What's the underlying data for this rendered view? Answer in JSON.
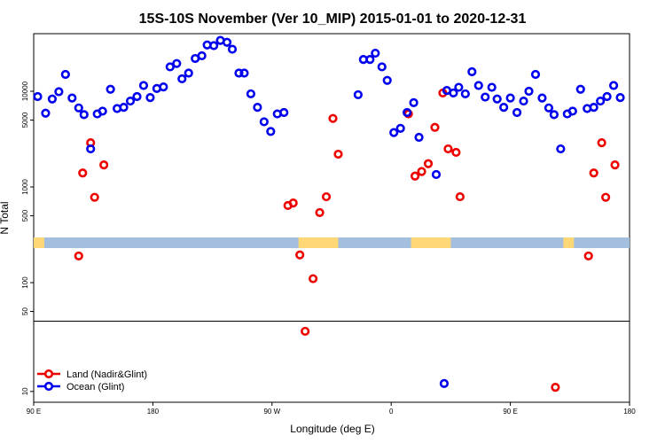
{
  "chart_data": {
    "type": "scatter",
    "title": "15S-10S November (Ver 10_MIP)   2015-01-01 to 2020-12-31",
    "xlabel": "Longitude (deg E)",
    "ylabel": "N Total",
    "x_ticks": [
      {
        "value": 90,
        "label": "90 E"
      },
      {
        "value": 180,
        "label": "180"
      },
      {
        "value": 270,
        "label": "90 W"
      },
      {
        "value": 360,
        "label": "0"
      },
      {
        "value": 450,
        "label": "90 E"
      },
      {
        "value": 540,
        "label": "180"
      }
    ],
    "xlim": [
      90,
      540
    ],
    "upper_panel": {
      "scale": "log",
      "ylim": [
        40,
        40000
      ],
      "y_ticks": [
        {
          "value": 100,
          "label": "100"
        },
        {
          "value": 500,
          "label": "500"
        },
        {
          "value": 1000,
          "label": "1000"
        },
        {
          "value": 5000,
          "label": "5000"
        },
        {
          "value": 10000,
          "label": "10000"
        }
      ]
    },
    "lower_panel": {
      "scale": "log",
      "ylim": [
        7.8,
        50
      ],
      "y_ticks": [
        {
          "value": 10,
          "label": "10"
        },
        {
          "value": 50,
          "label": "50"
        }
      ]
    },
    "legend_position": "bottom-left",
    "surface_strip": {
      "ocean_color": "#a4bedd",
      "land_color": "#fed876",
      "land_ranges": [
        [
          85,
          98
        ],
        [
          290,
          320
        ],
        [
          375,
          405
        ],
        [
          490,
          498
        ]
      ]
    },
    "series": [
      {
        "name": "Land (Nadir&Glint)",
        "color": "#ee0000",
        "points": [
          [
            124,
            190
          ],
          [
            127,
            1400
          ],
          [
            133,
            2900
          ],
          [
            136,
            780
          ],
          [
            143,
            1700
          ],
          [
            282,
            640
          ],
          [
            286,
            680
          ],
          [
            291,
            195
          ],
          [
            295,
            40
          ],
          [
            301,
            110
          ],
          [
            306,
            540
          ],
          [
            311,
            790
          ],
          [
            316,
            5200
          ],
          [
            320,
            2200
          ],
          [
            373,
            5800
          ],
          [
            378,
            1300
          ],
          [
            383,
            1450
          ],
          [
            388,
            1750
          ],
          [
            393,
            4200
          ],
          [
            399,
            9600
          ],
          [
            403,
            2500
          ],
          [
            409,
            2300
          ],
          [
            412,
            790
          ],
          [
            484,
            11
          ],
          [
            509,
            190
          ],
          [
            513,
            1400
          ],
          [
            519,
            2900
          ],
          [
            522,
            780
          ],
          [
            529,
            1700
          ]
        ]
      },
      {
        "name": "Ocean (Glint)",
        "color": "#0000ee",
        "points": [
          [
            93,
            8800
          ],
          [
            99,
            5900
          ],
          [
            104,
            8300
          ],
          [
            109,
            9900
          ],
          [
            114,
            15000
          ],
          [
            119,
            8500
          ],
          [
            124,
            6700
          ],
          [
            128,
            5700
          ],
          [
            133,
            2500
          ],
          [
            138,
            5800
          ],
          [
            142,
            6200
          ],
          [
            148,
            10500
          ],
          [
            153,
            6600
          ],
          [
            158,
            6800
          ],
          [
            163,
            7900
          ],
          [
            168,
            8800
          ],
          [
            173,
            11500
          ],
          [
            178,
            8600
          ],
          [
            183,
            10700
          ],
          [
            188,
            11100
          ],
          [
            193,
            18000
          ],
          [
            198,
            19500
          ],
          [
            202,
            13500
          ],
          [
            207,
            15500
          ],
          [
            212,
            22000
          ],
          [
            217,
            23500
          ],
          [
            221,
            30500
          ],
          [
            226,
            30000
          ],
          [
            231,
            34000
          ],
          [
            236,
            32500
          ],
          [
            240,
            27500
          ],
          [
            245,
            15500
          ],
          [
            249,
            15500
          ],
          [
            254,
            9400
          ],
          [
            259,
            6800
          ],
          [
            264,
            4800
          ],
          [
            269,
            3800
          ],
          [
            274,
            5800
          ],
          [
            279,
            6000
          ],
          [
            335,
            9200
          ],
          [
            339,
            21500
          ],
          [
            344,
            21500
          ],
          [
            348,
            25000
          ],
          [
            353,
            18000
          ],
          [
            357,
            13000
          ],
          [
            362,
            3700
          ],
          [
            367,
            4100
          ],
          [
            372,
            6000
          ],
          [
            377,
            7600
          ],
          [
            381,
            3300
          ],
          [
            394,
            1350
          ],
          [
            400,
            12
          ],
          [
            402,
            10200
          ],
          [
            407,
            9600
          ],
          [
            411,
            11000
          ],
          [
            416,
            9400
          ],
          [
            421,
            16000
          ],
          [
            426,
            11500
          ],
          [
            431,
            8700
          ],
          [
            436,
            11000
          ],
          [
            440,
            8300
          ],
          [
            445,
            6800
          ],
          [
            450,
            8500
          ],
          [
            455,
            6000
          ],
          [
            460,
            7900
          ],
          [
            464,
            10000
          ],
          [
            469,
            15000
          ],
          [
            474,
            8500
          ],
          [
            479,
            6700
          ],
          [
            483,
            5700
          ],
          [
            488,
            2500
          ],
          [
            493,
            5800
          ],
          [
            497,
            6200
          ],
          [
            503,
            10500
          ],
          [
            508,
            6600
          ],
          [
            513,
            6800
          ],
          [
            518,
            7900
          ],
          [
            523,
            8800
          ],
          [
            528,
            11500
          ],
          [
            533,
            8600
          ]
        ]
      }
    ]
  }
}
